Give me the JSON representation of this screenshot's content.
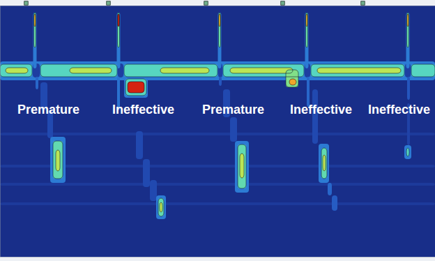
{
  "chart_data": {
    "type": "heatmap",
    "xlim": [
      0,
      62.4
    ],
    "ylim": [
      0,
      36
    ],
    "tick_labels": false,
    "pressure_range": [
      0,
      150
    ],
    "events": [
      3.7,
      15.5,
      29.5,
      40.5,
      52.0
    ],
    "annotations": [
      {
        "text": "Premature",
        "x": 6.9,
        "y": 14.9
      },
      {
        "text": "Ineffective",
        "x": 20.5,
        "y": 14.9
      },
      {
        "text": "Premature",
        "x": 33.4,
        "y": 14.9
      },
      {
        "text": "Ineffective",
        "x": 46.0,
        "y": 14.9
      },
      {
        "text": "Ineffective",
        "x": 57.2,
        "y": 14.9
      }
    ],
    "regions": [
      {
        "x1": 0,
        "x2": 62.4,
        "y1": 0,
        "y2": 36,
        "value": 12
      },
      {
        "x1": 0,
        "x2": 62.4,
        "y1": 18.2,
        "y2": 18.6,
        "value": 18
      },
      {
        "x1": 0,
        "x2": 62.4,
        "y1": 22.8,
        "y2": 23.2,
        "value": 18
      },
      {
        "x1": 0,
        "x2": 62.4,
        "y1": 25.4,
        "y2": 25.8,
        "value": 18
      },
      {
        "x1": 0,
        "x2": 62.4,
        "y1": 28.2,
        "y2": 28.6,
        "value": 18
      },
      {
        "x1": 0,
        "x2": 62.4,
        "y1": 8.0,
        "y2": 10.7,
        "value": 40
      },
      {
        "x1": 0,
        "x2": 4.6,
        "y1": 8.4,
        "y2": 10.2,
        "value": 65
      },
      {
        "x1": 5.8,
        "x2": 16.8,
        "y1": 8.4,
        "y2": 10.2,
        "value": 65
      },
      {
        "x1": 17.8,
        "x2": 31.2,
        "y1": 8.4,
        "y2": 10.2,
        "value": 65
      },
      {
        "x1": 32.0,
        "x2": 43.6,
        "y1": 8.4,
        "y2": 10.2,
        "value": 65
      },
      {
        "x1": 44.6,
        "x2": 58.0,
        "y1": 8.4,
        "y2": 10.2,
        "value": 65
      },
      {
        "x1": 59.0,
        "x2": 62.4,
        "y1": 8.4,
        "y2": 10.2,
        "value": 65
      },
      {
        "x1": 0.8,
        "x2": 4.0,
        "y1": 8.9,
        "y2": 9.7,
        "value": 88
      },
      {
        "x1": 10.0,
        "x2": 16.0,
        "y1": 8.9,
        "y2": 9.7,
        "value": 88
      },
      {
        "x1": 23.0,
        "x2": 30.0,
        "y1": 8.9,
        "y2": 9.7,
        "value": 88
      },
      {
        "x1": 33.0,
        "x2": 42.0,
        "y1": 8.9,
        "y2": 9.7,
        "value": 88
      },
      {
        "x1": 45.5,
        "x2": 57.5,
        "y1": 8.9,
        "y2": 9.7,
        "value": 88
      },
      {
        "x1": 4.7,
        "x2": 5.7,
        "y1": 8.3,
        "y2": 10.3,
        "value": 20
      },
      {
        "x1": 16.9,
        "x2": 17.7,
        "y1": 8.3,
        "y2": 10.3,
        "value": 20
      },
      {
        "x1": 31.3,
        "x2": 31.9,
        "y1": 8.3,
        "y2": 10.3,
        "value": 20
      },
      {
        "x1": 43.7,
        "x2": 44.5,
        "y1": 8.3,
        "y2": 10.3,
        "value": 20
      },
      {
        "x1": 58.1,
        "x2": 58.9,
        "y1": 8.3,
        "y2": 10.3,
        "value": 20
      },
      {
        "x1": 41.0,
        "x2": 42.8,
        "y1": 9.2,
        "y2": 11.7,
        "value": 75
      },
      {
        "x1": 41.5,
        "x2": 42.5,
        "y1": 10.5,
        "y2": 11.4,
        "value": 115
      },
      {
        "x1": 17.8,
        "x2": 21.2,
        "y1": 10.2,
        "y2": 13.2,
        "value": 40
      },
      {
        "x1": 18.0,
        "x2": 21.0,
        "y1": 10.5,
        "y2": 12.9,
        "value": 65
      },
      {
        "x1": 18.3,
        "x2": 20.7,
        "y1": 10.9,
        "y2": 12.5,
        "value": 140
      },
      {
        "x1": 4.75,
        "x2": 5.25,
        "y1": 1.0,
        "y2": 9.0,
        "value": 40
      },
      {
        "x1": 4.85,
        "x2": 5.15,
        "y1": 1.0,
        "y2": 6.0,
        "value": 70
      },
      {
        "x1": 4.88,
        "x2": 5.12,
        "y1": 1.2,
        "y2": 3.0,
        "value": 110
      },
      {
        "x1": 16.75,
        "x2": 17.25,
        "y1": 1.0,
        "y2": 9.0,
        "value": 40
      },
      {
        "x1": 16.85,
        "x2": 17.15,
        "y1": 1.0,
        "y2": 6.0,
        "value": 70
      },
      {
        "x1": 16.88,
        "x2": 17.12,
        "y1": 1.2,
        "y2": 3.0,
        "value": 140
      },
      {
        "x1": 31.25,
        "x2": 31.75,
        "y1": 1.0,
        "y2": 9.0,
        "value": 40
      },
      {
        "x1": 31.35,
        "x2": 31.65,
        "y1": 1.0,
        "y2": 6.0,
        "value": 70
      },
      {
        "x1": 31.38,
        "x2": 31.62,
        "y1": 1.2,
        "y2": 3.0,
        "value": 110
      },
      {
        "x1": 43.75,
        "x2": 44.25,
        "y1": 1.0,
        "y2": 9.0,
        "value": 40
      },
      {
        "x1": 43.85,
        "x2": 44.15,
        "y1": 1.0,
        "y2": 6.0,
        "value": 70
      },
      {
        "x1": 43.88,
        "x2": 44.12,
        "y1": 1.2,
        "y2": 3.0,
        "value": 110
      },
      {
        "x1": 58.25,
        "x2": 58.75,
        "y1": 1.0,
        "y2": 9.0,
        "value": 40
      },
      {
        "x1": 58.35,
        "x2": 58.65,
        "y1": 1.0,
        "y2": 6.0,
        "value": 70
      },
      {
        "x1": 58.38,
        "x2": 58.62,
        "y1": 1.2,
        "y2": 3.0,
        "value": 110
      },
      {
        "x1": 5.1,
        "x2": 5.5,
        "y1": 10.2,
        "y2": 12.0,
        "value": 35
      },
      {
        "x1": 16.8,
        "x2": 17.2,
        "y1": 10.2,
        "y2": 15.0,
        "value": 38
      },
      {
        "x1": 31.4,
        "x2": 31.8,
        "y1": 10.2,
        "y2": 11.5,
        "value": 30
      },
      {
        "x1": 44.0,
        "x2": 44.4,
        "y1": 10.2,
        "y2": 14.5,
        "value": 35
      },
      {
        "x1": 58.4,
        "x2": 58.8,
        "y1": 10.2,
        "y2": 13.5,
        "value": 30
      },
      {
        "x1": 5.8,
        "x2": 6.8,
        "y1": 11.0,
        "y2": 15.0,
        "value": 25
      },
      {
        "x1": 6.8,
        "x2": 7.6,
        "y1": 15.0,
        "y2": 19.0,
        "value": 25
      },
      {
        "x1": 7.2,
        "x2": 9.4,
        "y1": 18.8,
        "y2": 25.4,
        "value": 40
      },
      {
        "x1": 7.6,
        "x2": 9.0,
        "y1": 19.4,
        "y2": 24.8,
        "value": 68
      },
      {
        "x1": 8.0,
        "x2": 8.6,
        "y1": 20.7,
        "y2": 23.7,
        "value": 88
      },
      {
        "x1": 19.5,
        "x2": 20.5,
        "y1": 18.0,
        "y2": 22.0,
        "value": 25
      },
      {
        "x1": 20.5,
        "x2": 21.5,
        "y1": 22.0,
        "y2": 26.0,
        "value": 25
      },
      {
        "x1": 21.5,
        "x2": 22.5,
        "y1": 25.0,
        "y2": 28.0,
        "value": 25
      },
      {
        "x1": 22.4,
        "x2": 23.8,
        "y1": 27.2,
        "y2": 30.6,
        "value": 40
      },
      {
        "x1": 22.7,
        "x2": 23.5,
        "y1": 27.6,
        "y2": 30.2,
        "value": 68
      },
      {
        "x1": 22.9,
        "x2": 23.3,
        "y1": 28.2,
        "y2": 29.6,
        "value": 88
      },
      {
        "x1": 32.0,
        "x2": 33.0,
        "y1": 12.0,
        "y2": 16.0,
        "value": 25
      },
      {
        "x1": 33.0,
        "x2": 34.0,
        "y1": 16.0,
        "y2": 19.5,
        "value": 25
      },
      {
        "x1": 33.7,
        "x2": 35.7,
        "y1": 19.4,
        "y2": 26.8,
        "value": 40
      },
      {
        "x1": 34.1,
        "x2": 35.3,
        "y1": 19.9,
        "y2": 26.2,
        "value": 68
      },
      {
        "x1": 34.4,
        "x2": 35.0,
        "y1": 21.2,
        "y2": 24.7,
        "value": 88
      },
      {
        "x1": 44.8,
        "x2": 45.6,
        "y1": 12.0,
        "y2": 19.8,
        "value": 25
      },
      {
        "x1": 45.7,
        "x2": 47.2,
        "y1": 19.8,
        "y2": 25.4,
        "value": 40
      },
      {
        "x1": 46.1,
        "x2": 46.9,
        "y1": 20.4,
        "y2": 24.8,
        "value": 68
      },
      {
        "x1": 46.3,
        "x2": 46.7,
        "y1": 21.4,
        "y2": 23.7,
        "value": 88
      },
      {
        "x1": 47.0,
        "x2": 47.6,
        "y1": 25.4,
        "y2": 27.2,
        "value": 35
      },
      {
        "x1": 47.6,
        "x2": 48.4,
        "y1": 27.2,
        "y2": 29.4,
        "value": 32
      },
      {
        "x1": 58.4,
        "x2": 58.8,
        "y1": 14.0,
        "y2": 20.0,
        "value": 22
      },
      {
        "x1": 58.0,
        "x2": 59.0,
        "y1": 20.0,
        "y2": 22.0,
        "value": 40
      },
      {
        "x1": 58.3,
        "x2": 58.7,
        "y1": 20.4,
        "y2": 21.6,
        "value": 65
      }
    ]
  }
}
